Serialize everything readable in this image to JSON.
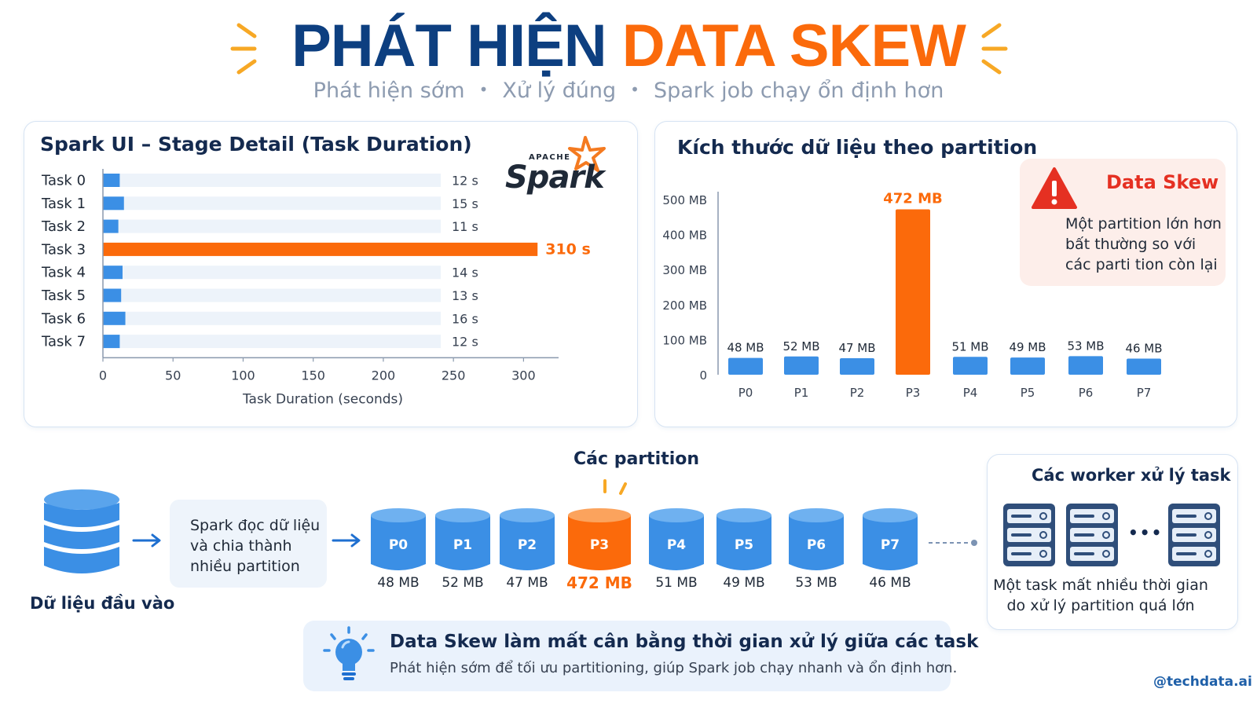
{
  "header": {
    "title_part1": "PHÁT HIỆN",
    "title_part2": "DATA SKEW",
    "subtitle_items": [
      "Phát hiện sớm",
      "Xử lý đúng",
      "Spark job chạy ổn định hơn"
    ],
    "subtitle_sep": "•"
  },
  "colors": {
    "navy": "#0d3f80",
    "orange": "#fb6a0b",
    "blue_bar": "#3b8fe5",
    "track": "#edf3fa",
    "alert_red": "#e53022"
  },
  "task_panel": {
    "title": "Spark UI – Stage Detail (Task Duration)",
    "logo_small": "APACHE",
    "logo_big": "Spark"
  },
  "partition_panel": {
    "title": "Kích thước dữ liệu theo partition",
    "alert_icon": "warning-triangle-icon",
    "alert_title": "Data Skew",
    "alert_text": "Một partition lớn hơn bất thường so với các parti tion còn lại"
  },
  "chart_data": [
    {
      "type": "bar",
      "orientation": "horizontal",
      "title": "Spark UI – Stage Detail (Task Duration)",
      "categories": [
        "Task 0",
        "Task 1",
        "Task 2",
        "Task 3",
        "Task 4",
        "Task 5",
        "Task 6",
        "Task 7"
      ],
      "values": [
        12,
        15,
        11,
        310,
        14,
        13,
        16,
        12
      ],
      "value_labels": [
        "12 s",
        "15 s",
        "11 s",
        "310 s",
        "14 s",
        "13 s",
        "16 s",
        "12 s"
      ],
      "highlight_index": 3,
      "xlabel": "Task Duration (seconds)",
      "xticks": [
        "0",
        "50",
        "100",
        "150",
        "200",
        "250",
        "300"
      ],
      "xlim": [
        0,
        325
      ]
    },
    {
      "type": "bar",
      "title": "Kích thước dữ liệu theo partition",
      "categories": [
        "P0",
        "P1",
        "P2",
        "P3",
        "P4",
        "P5",
        "P6",
        "P7"
      ],
      "values": [
        48,
        52,
        47,
        472,
        51,
        49,
        53,
        46
      ],
      "value_labels": [
        "48 MB",
        "52 MB",
        "47 MB",
        "472 MB",
        "51 MB",
        "49 MB",
        "53 MB",
        "46 MB"
      ],
      "highlight_index": 3,
      "yticks": [
        "500 MB",
        "400 MB",
        "300 MB",
        "200 MB",
        "100 MB",
        "0"
      ],
      "ylim": [
        0,
        500
      ]
    }
  ],
  "flow": {
    "input_label": "Dữ liệu đầu vào",
    "read_text": "Spark đọc dữ liệu và chia thành nhiều partition",
    "partitions_title": "Các partition",
    "partitions": [
      {
        "label": "P0",
        "size": "48 MB"
      },
      {
        "label": "P1",
        "size": "52 MB"
      },
      {
        "label": "P2",
        "size": "47 MB"
      },
      {
        "label": "P3",
        "size": "472 MB"
      },
      {
        "label": "P4",
        "size": "51 MB"
      },
      {
        "label": "P5",
        "size": "49 MB"
      },
      {
        "label": "P6",
        "size": "53 MB"
      },
      {
        "label": "P7",
        "size": "46 MB"
      }
    ],
    "workers_title": "Các worker xử lý task",
    "workers_ellipsis": "•••",
    "workers_text": "Một task mất nhiều thời gian do xử lý partition quá lớn"
  },
  "tip": {
    "icon": "lightbulb-icon",
    "title": "Data Skew làm mất cân bằng thời gian xử lý giữa các task",
    "text": "Phát hiện sớm để tối ưu partitioning, giúp Spark job chạy nhanh và ổn định hơn."
  },
  "footer": {
    "handle": "@techdata.ai"
  }
}
